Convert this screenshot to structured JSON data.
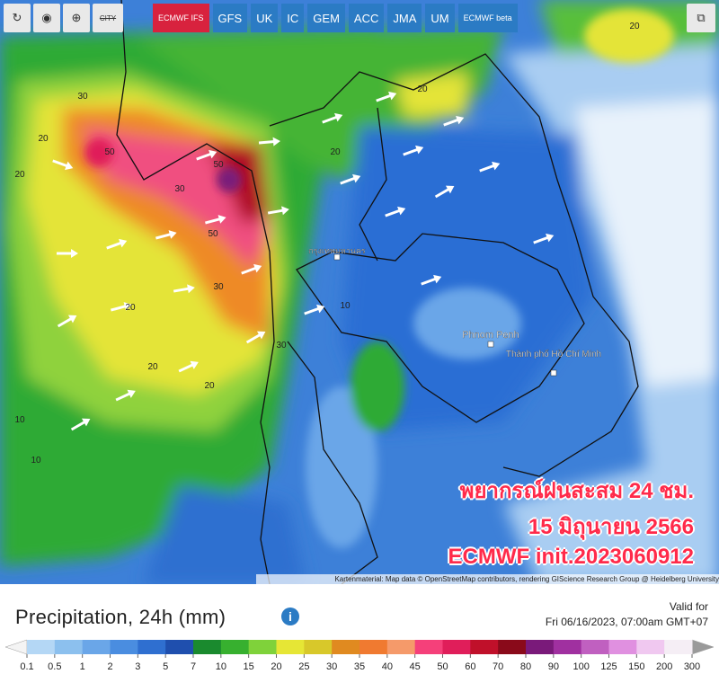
{
  "toolbar": {
    "city_button": "CITY",
    "models": [
      "ECMWF IFS",
      "GFS",
      "UK",
      "IC",
      "GEM",
      "ACC",
      "JMA",
      "UM",
      "ECMWF beta"
    ],
    "active_model": "ECMWF IFS"
  },
  "map": {
    "place_labels": [
      "กรุงเทพมหานคร",
      "Phnom Penh",
      "Thành phố Hồ Chí Minh"
    ],
    "contour_labels": [
      "30",
      "50",
      "20",
      "20",
      "30",
      "50",
      "50",
      "30",
      "20",
      "20",
      "20",
      "10",
      "10",
      "20",
      "20",
      "10",
      "30",
      "20"
    ],
    "overlay": [
      "พยากรณ์ฝนสะสม 24 ชม.",
      "15 มิถุนายน 2566",
      "ECMWF init.2023060912"
    ],
    "attribution": "Kartenmaterial: Map data © OpenStreetMap contributors, rendering GIScience Research Group @ Heidelberg University"
  },
  "legend": {
    "title": "Precipitation, 24h (mm)",
    "valid_label": "Valid for",
    "valid_time": "Fri 06/16/2023, 07:00am GMT+07",
    "ticks": [
      0.1,
      0.5,
      1,
      2,
      3,
      5,
      7,
      10,
      15,
      20,
      25,
      30,
      35,
      40,
      45,
      50,
      60,
      70,
      80,
      90,
      100,
      125,
      150,
      200,
      300
    ],
    "colors": [
      "#b4d7f5",
      "#8cc0ee",
      "#6aa6e8",
      "#4a8de0",
      "#2f6fd0",
      "#1f4fae",
      "#1a8a2e",
      "#37b02f",
      "#7fd23a",
      "#e6e635",
      "#d8c82a",
      "#e08a20",
      "#f07a30",
      "#f59a6a",
      "#f5407a",
      "#e01e5a",
      "#c0102a",
      "#8a0a1a",
      "#7a1a7a",
      "#a030a0",
      "#c060c0",
      "#e090e0",
      "#f0c8f0",
      "#f5eef5"
    ],
    "below_color": "#f4f4f4",
    "above_color": "#9a9a9a"
  }
}
